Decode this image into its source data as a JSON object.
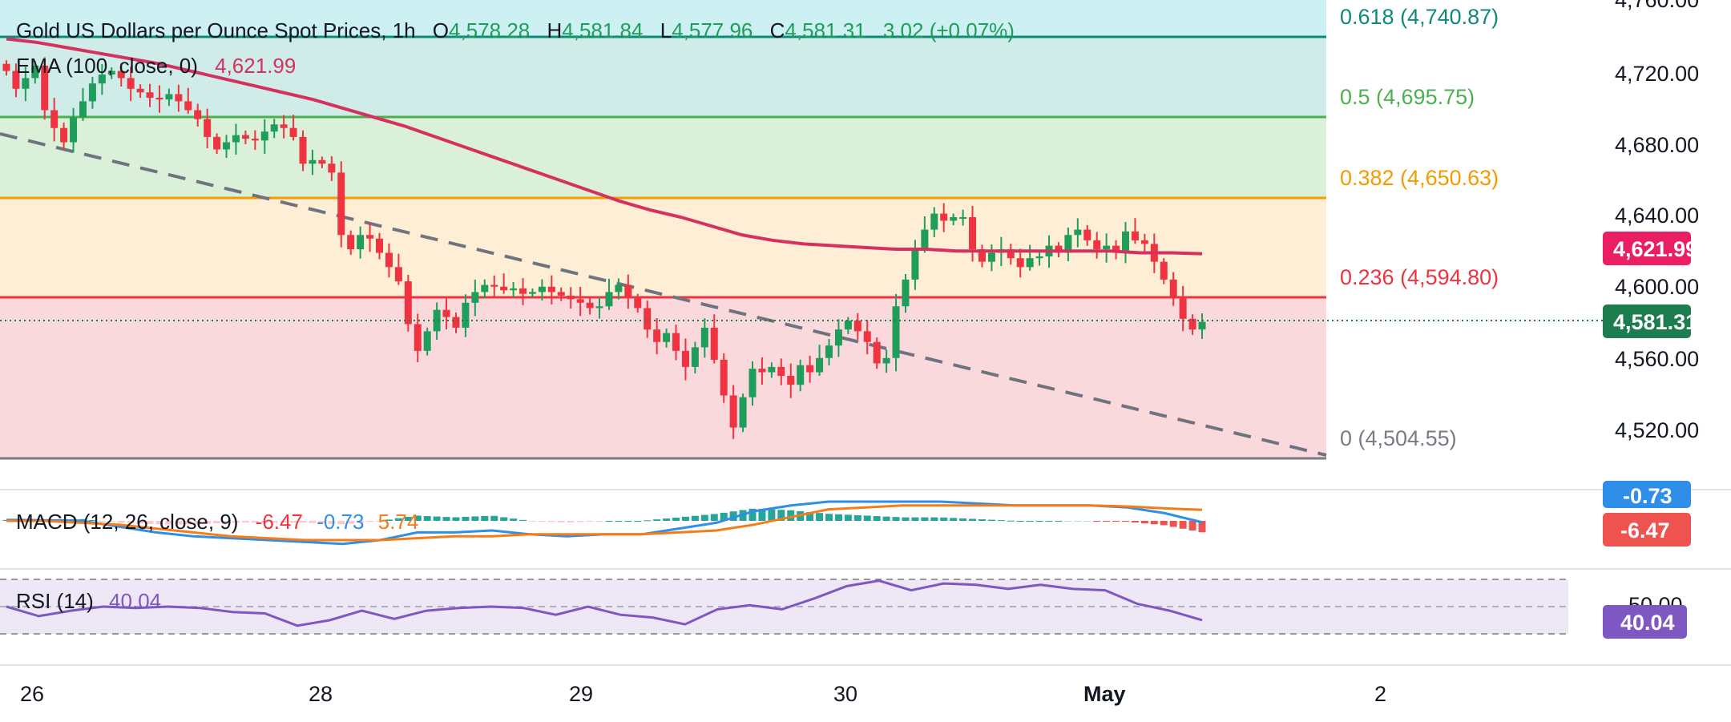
{
  "header": {
    "symbol": "Gold US Dollars per Ounce Spot Prices, 1h",
    "o_label": "O",
    "o": "4,578.28",
    "h_label": "H",
    "h": "4,581.84",
    "l_label": "L",
    "l": "4,577.96",
    "c_label": "C",
    "c": "4,581.31",
    "change": "3.02 (+0.07%)",
    "ema_name": "EMA (100, close, 0)",
    "ema_value": "4,621.99"
  },
  "price_axis": {
    "ticks": [
      "4,760.00",
      "4,720.00",
      "4,680.00",
      "4,640.00",
      "4,600.00",
      "4,560.00",
      "4,520.00"
    ],
    "last_price_tag": "4,581.31",
    "ema_tag": "4,621.99"
  },
  "time_axis": {
    "labels": [
      "26",
      "28",
      "29",
      "30",
      "May",
      "2"
    ]
  },
  "macd": {
    "label": "MACD (12, 26, close, 9)",
    "hist": "-6.47",
    "macd": "-0.73",
    "signal": "5.74",
    "tag_macd": "-0.73",
    "tag_hist": "-6.47"
  },
  "rsi": {
    "label": "RSI (14)",
    "value": "40.04",
    "tag": "40.04",
    "tick_partial": "50.00"
  },
  "colors": {
    "up": "#26a69a",
    "up_candle": "#1e9e5a",
    "down": "#ef3340",
    "ema": "#d6305f",
    "macd_line": "#2f8ee8",
    "signal_line": "#f57c18",
    "rsi_line": "#7e57c2",
    "fib_0618": "#0f8a78",
    "fib_05": "#4caf50",
    "fib_0382": "#f59b00",
    "fib_0236": "#ef3340",
    "fib_0": "#787b86"
  },
  "chart_data": {
    "type": "candlestick",
    "title": "Gold US Dollars per Ounce Spot Prices, 1h",
    "ylim": [
      4504.55,
      4762
    ],
    "fibonacci": [
      {
        "level": "0.618",
        "price": 4740.87,
        "label": "0.618 (4,740.87)"
      },
      {
        "level": "0.5",
        "price": 4695.75,
        "label": "0.5 (4,695.75)"
      },
      {
        "level": "0.382",
        "price": 4650.63,
        "label": "0.382 (4,650.63)"
      },
      {
        "level": "0.236",
        "price": 4594.8,
        "label": "0.236 (4,594.80)"
      },
      {
        "level": "0",
        "price": 4504.55,
        "label": "0 (4,504.55)"
      }
    ],
    "trendline": {
      "style": "dashed",
      "from": 4700,
      "to": 4506
    },
    "last_close": 4581.31,
    "ema100_last": 4621.99,
    "closes": [
      4722,
      4712,
      4718,
      4725,
      4700,
      4690,
      4682,
      4696,
      4705,
      4715,
      4720,
      4722,
      4718,
      4712,
      4710,
      4707,
      4706,
      4709,
      4705,
      4700,
      4695,
      4685,
      4678,
      4682,
      4686,
      4684,
      4683,
      4688,
      4692,
      4690,
      4685,
      4670,
      4672,
      4670,
      4665,
      4630,
      4622,
      4630,
      4628,
      4620,
      4612,
      4604,
      4580,
      4565,
      4576,
      4588,
      4584,
      4578,
      4592,
      4598,
      4602,
      4601,
      4599,
      4600,
      4597,
      4598,
      4601,
      4598,
      4596,
      4594,
      4592,
      4589,
      4590,
      4598,
      4602,
      4595,
      4589,
      4577,
      4570,
      4575,
      4565,
      4556,
      4567,
      4578,
      4560,
      4540,
      4522,
      4539,
      4555,
      4553,
      4556,
      4551,
      4546,
      4557,
      4553,
      4561,
      4568,
      4577,
      4582,
      4576,
      4570,
      4558,
      4561,
      4590,
      4605,
      4622,
      4633,
      4642,
      4638,
      4640,
      4640,
      4622,
      4615,
      4620,
      4622,
      4617,
      4612,
      4617,
      4618,
      4624,
      4620,
      4630,
      4633,
      4627,
      4622,
      4624,
      4620,
      4632,
      4627,
      4625,
      4615,
      4605,
      4595,
      4583,
      4577,
      4581.31
    ],
    "ema100": [
      4740,
      4738,
      4735,
      4732,
      4729,
      4726,
      4722,
      4718,
      4714,
      4710,
      4706,
      4701,
      4696,
      4691,
      4685,
      4679,
      4673,
      4667,
      4661,
      4655,
      4649,
      4644,
      4640,
      4635,
      4630,
      4627,
      4625,
      4624,
      4623,
      4622,
      4622,
      4621,
      4621,
      4621,
      4621,
      4621,
      4621,
      4620,
      4620,
      4619.5
    ],
    "macd": {
      "macd": [
        0.5,
        0.3,
        0.1,
        -3,
        -6,
        -8,
        -9,
        -10,
        -11,
        -12,
        -10,
        -6,
        -6,
        -5,
        -7,
        -8,
        -7,
        -7,
        -4,
        -1,
        5,
        8,
        10,
        10,
        10,
        10,
        9,
        8,
        8,
        8,
        7,
        4,
        -0.73
      ],
      "signal": [
        0,
        0,
        -1,
        -2,
        -4,
        -6,
        -8,
        -9,
        -10,
        -10,
        -10,
        -9,
        -8,
        -8,
        -7,
        -7,
        -7,
        -7,
        -6,
        -5,
        -2,
        2,
        6,
        7,
        8,
        8,
        8,
        8,
        8,
        8,
        7.5,
        6.5,
        5.74
      ],
      "hist_last": -6.47
    },
    "rsi": {
      "last": 40.04,
      "levels": [
        70,
        50,
        30
      ],
      "series": [
        50,
        43,
        47,
        50,
        49,
        50,
        49,
        46,
        45,
        36,
        40,
        47,
        41,
        47,
        49,
        50,
        49,
        44,
        50,
        44,
        42,
        37,
        48,
        51,
        48,
        56,
        65,
        69,
        62,
        67,
        66,
        63,
        66,
        63,
        62,
        52,
        47,
        40.04
      ]
    }
  }
}
